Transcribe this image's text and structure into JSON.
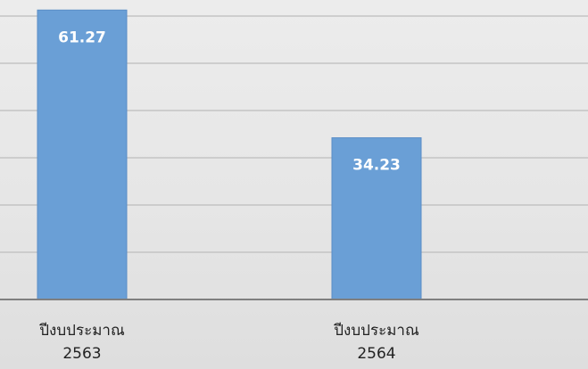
{
  "chart_data": {
    "type": "bar",
    "categories": [
      [
        "ปีงบประมาณ",
        "2563"
      ],
      [
        "ปีงบประมาณ",
        "2564"
      ]
    ],
    "values": [
      61.27,
      34.23
    ],
    "data_labels": [
      "61.27",
      "34.23"
    ],
    "title": "",
    "xlabel": "",
    "ylabel": "",
    "ylim": [
      0,
      60
    ],
    "grid": true,
    "legend": "none",
    "colors": {
      "bar": "#6a9fd6",
      "grid": "#c4c4c4",
      "axis": "#7f7f7f",
      "data_label": "#ffffff"
    }
  }
}
